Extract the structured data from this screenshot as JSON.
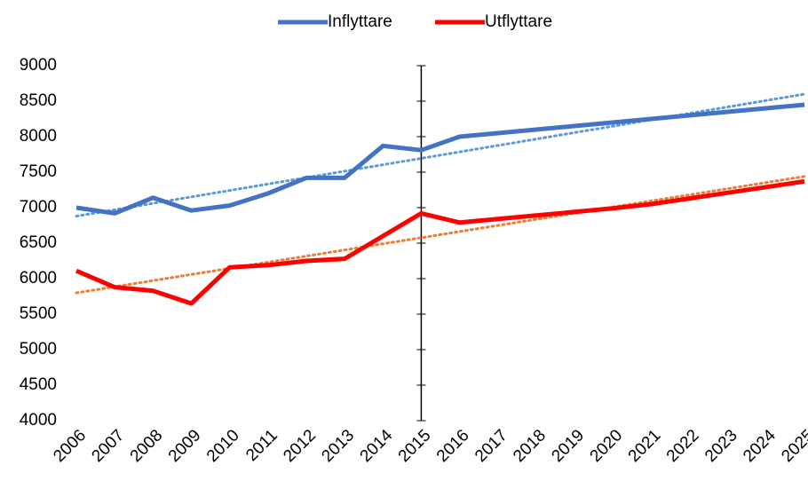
{
  "chart_data": {
    "type": "line",
    "categories": [
      "2006",
      "2007",
      "2008",
      "2009",
      "2010",
      "2011",
      "2012",
      "2013",
      "2014",
      "2015",
      "2016",
      "2017",
      "2018",
      "2019",
      "2020",
      "2021",
      "2022",
      "2023",
      "2024",
      "2025"
    ],
    "series": [
      {
        "name": "Inflyttare",
        "color": "#4472c4",
        "values": [
          7000,
          6920,
          7140,
          6960,
          7030,
          7200,
          7420,
          7420,
          7870,
          7810,
          8000,
          8050,
          8100,
          8150,
          8200,
          8250,
          8300,
          8350,
          8400,
          8450
        ]
      },
      {
        "name": "Utflyttare",
        "color": "#ff0000",
        "values": [
          6110,
          5880,
          5830,
          5650,
          6160,
          6190,
          6250,
          6280,
          6600,
          6920,
          6790,
          6840,
          6890,
          6940,
          6990,
          7050,
          7130,
          7210,
          7290,
          7370
        ]
      }
    ],
    "trendlines": [
      {
        "color": "#5b9bd5",
        "start": 6880,
        "end": 8600
      },
      {
        "color": "#ed7d31",
        "start": 5800,
        "end": 7440
      }
    ],
    "ylim": [
      4000,
      9000
    ],
    "yticks": [
      4000,
      4500,
      5000,
      5500,
      6000,
      6500,
      7000,
      7500,
      8000,
      8500,
      9000
    ],
    "y_axis_at": "2015",
    "legend": "top"
  }
}
